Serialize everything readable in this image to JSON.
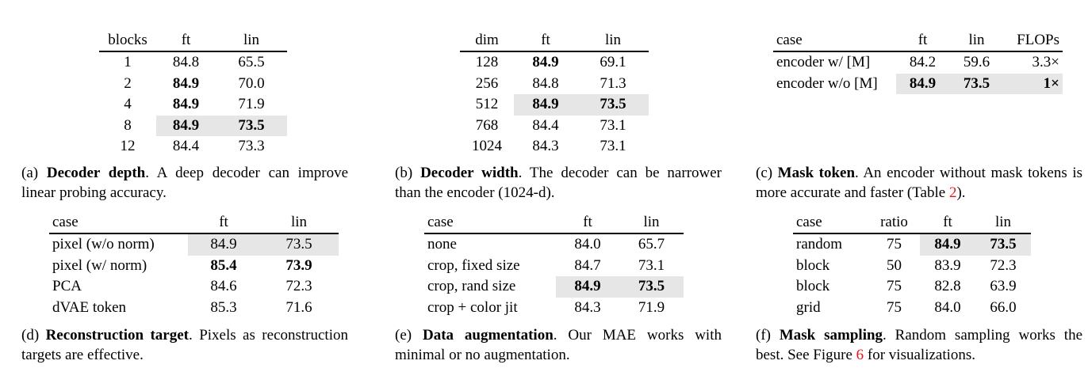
{
  "tables": [
    {
      "columns": [
        "blocks",
        "ft",
        "lin"
      ],
      "rows": [
        [
          "1",
          "84.8",
          "65.5"
        ],
        [
          "2",
          "84.9",
          "70.0"
        ],
        [
          "4",
          "84.9",
          "71.9"
        ],
        [
          "8",
          "84.9",
          "73.5"
        ],
        [
          "12",
          "84.4",
          "73.3"
        ]
      ],
      "bold_cells": [
        [
          1,
          1
        ],
        [
          2,
          1
        ],
        [
          3,
          1
        ],
        [
          3,
          2
        ]
      ],
      "shaded_cells": [
        [
          3,
          1
        ],
        [
          3,
          2
        ]
      ],
      "caption": [
        {
          "text": "(a) "
        },
        {
          "text": "Decoder depth",
          "bold": true
        },
        {
          "text": ". A deep decoder can improve linear probing accuracy."
        }
      ]
    },
    {
      "columns": [
        "dim",
        "ft",
        "lin"
      ],
      "rows": [
        [
          "128",
          "84.9",
          "69.1"
        ],
        [
          "256",
          "84.8",
          "71.3"
        ],
        [
          "512",
          "84.9",
          "73.5"
        ],
        [
          "768",
          "84.4",
          "73.1"
        ],
        [
          "1024",
          "84.3",
          "73.1"
        ]
      ],
      "bold_cells": [
        [
          0,
          1
        ],
        [
          2,
          1
        ],
        [
          2,
          2
        ]
      ],
      "shaded_cells": [
        [
          2,
          1
        ],
        [
          2,
          2
        ]
      ],
      "caption": [
        {
          "text": "(b) "
        },
        {
          "text": "Decoder width",
          "bold": true
        },
        {
          "text": ". The decoder can be narrower than the encoder (1024-d)."
        }
      ]
    },
    {
      "columns": [
        "case",
        "ft",
        "lin",
        "FLOPs"
      ],
      "rows": [
        [
          "encoder w/ [M]",
          "84.2",
          "59.6",
          "3.3×"
        ],
        [
          "encoder w/o [M]",
          "84.9",
          "73.5",
          "1×"
        ]
      ],
      "bold_cells": [
        [
          1,
          1
        ],
        [
          1,
          2
        ],
        [
          1,
          3
        ]
      ],
      "shaded_cells": [
        [
          1,
          1
        ],
        [
          1,
          2
        ],
        [
          1,
          3
        ]
      ],
      "caption": [
        {
          "text": "(c) "
        },
        {
          "text": "Mask token",
          "bold": true
        },
        {
          "text": ". An encoder without mask tokens is more accurate and faster (Table "
        },
        {
          "text": "2",
          "color": "#e8141b"
        },
        {
          "text": ")."
        }
      ]
    },
    {
      "columns": [
        "case",
        "ft",
        "lin"
      ],
      "rows": [
        [
          "pixel (w/o norm)",
          "84.9",
          "73.5"
        ],
        [
          "pixel (w/ norm)",
          "85.4",
          "73.9"
        ],
        [
          "PCA",
          "84.6",
          "72.3"
        ],
        [
          "dVAE token",
          "85.3",
          "71.6"
        ]
      ],
      "bold_cells": [
        [
          1,
          1
        ],
        [
          1,
          2
        ]
      ],
      "shaded_cells": [
        [
          0,
          1
        ],
        [
          0,
          2
        ]
      ],
      "caption": [
        {
          "text": "(d) "
        },
        {
          "text": "Reconstruction target",
          "bold": true
        },
        {
          "text": ". Pixels as reconstruction targets are effective."
        }
      ]
    },
    {
      "columns": [
        "case",
        "ft",
        "lin"
      ],
      "rows": [
        [
          "none",
          "84.0",
          "65.7"
        ],
        [
          "crop, fixed size",
          "84.7",
          "73.1"
        ],
        [
          "crop, rand size",
          "84.9",
          "73.5"
        ],
        [
          "crop + color jit",
          "84.3",
          "71.9"
        ]
      ],
      "bold_cells": [
        [
          2,
          1
        ],
        [
          2,
          2
        ]
      ],
      "shaded_cells": [
        [
          2,
          1
        ],
        [
          2,
          2
        ]
      ],
      "caption": [
        {
          "text": "(e) "
        },
        {
          "text": "Data augmentation",
          "bold": true
        },
        {
          "text": ". Our MAE works with minimal or no augmentation."
        }
      ]
    },
    {
      "columns": [
        "case",
        "ratio",
        "ft",
        "lin"
      ],
      "rows": [
        [
          "random",
          "75",
          "84.9",
          "73.5"
        ],
        [
          "block",
          "50",
          "83.9",
          "72.3"
        ],
        [
          "block",
          "75",
          "82.8",
          "63.9"
        ],
        [
          "grid",
          "75",
          "84.0",
          "66.0"
        ]
      ],
      "bold_cells": [
        [
          0,
          2
        ],
        [
          0,
          3
        ]
      ],
      "shaded_cells": [
        [
          0,
          2
        ],
        [
          0,
          3
        ]
      ],
      "caption": [
        {
          "text": "(f) "
        },
        {
          "text": "Mask sampling",
          "bold": true
        },
        {
          "text": ". Random sampling works the best. See Figure "
        },
        {
          "text": "6",
          "color": "#e8141b"
        },
        {
          "text": " for visualizations."
        }
      ]
    }
  ]
}
